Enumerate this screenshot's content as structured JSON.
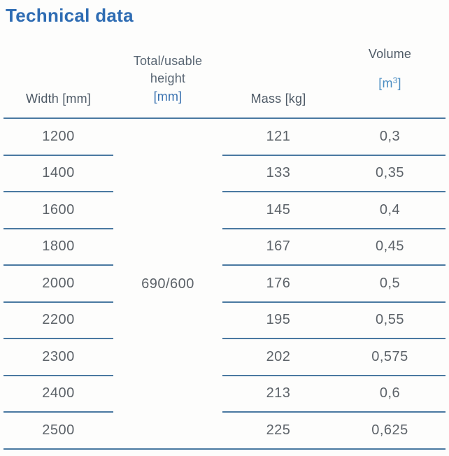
{
  "page": {
    "title": "Technical data"
  },
  "colors": {
    "title_blue": "#2e6cb3",
    "unit_blue": "#3a72b0",
    "unit_light_blue": "#4b8dc2",
    "separator_line": "#4a79a1",
    "header_text": "#4e5a66",
    "cell_text": "#5d6369",
    "background": "#fdfdfc"
  },
  "table": {
    "columns": [
      {
        "label": "Width [mm]"
      },
      {
        "label_line1": "Total/usable",
        "label_line2": "height",
        "unit": "[mm]"
      },
      {
        "label": "Mass [kg]"
      },
      {
        "label": "Volume",
        "unit_open": "[m",
        "unit_sup": "3",
        "unit_close": "]"
      }
    ],
    "merged_height_value": "690/600",
    "rows": [
      {
        "width": "1200",
        "mass": "121",
        "volume": "0,3"
      },
      {
        "width": "1400",
        "mass": "133",
        "volume": "0,35"
      },
      {
        "width": "1600",
        "mass": "145",
        "volume": "0,4"
      },
      {
        "width": "1800",
        "mass": "167",
        "volume": "0,45"
      },
      {
        "width": "2000",
        "height": "690/600",
        "mass": "176",
        "volume": "0,5"
      },
      {
        "width": "2200",
        "mass": "195",
        "volume": "0,55"
      },
      {
        "width": "2300",
        "mass": "202",
        "volume": "0,575"
      },
      {
        "width": "2400",
        "mass": "213",
        "volume": "0,6"
      },
      {
        "width": "2500",
        "mass": "225",
        "volume": "0,625"
      }
    ]
  }
}
